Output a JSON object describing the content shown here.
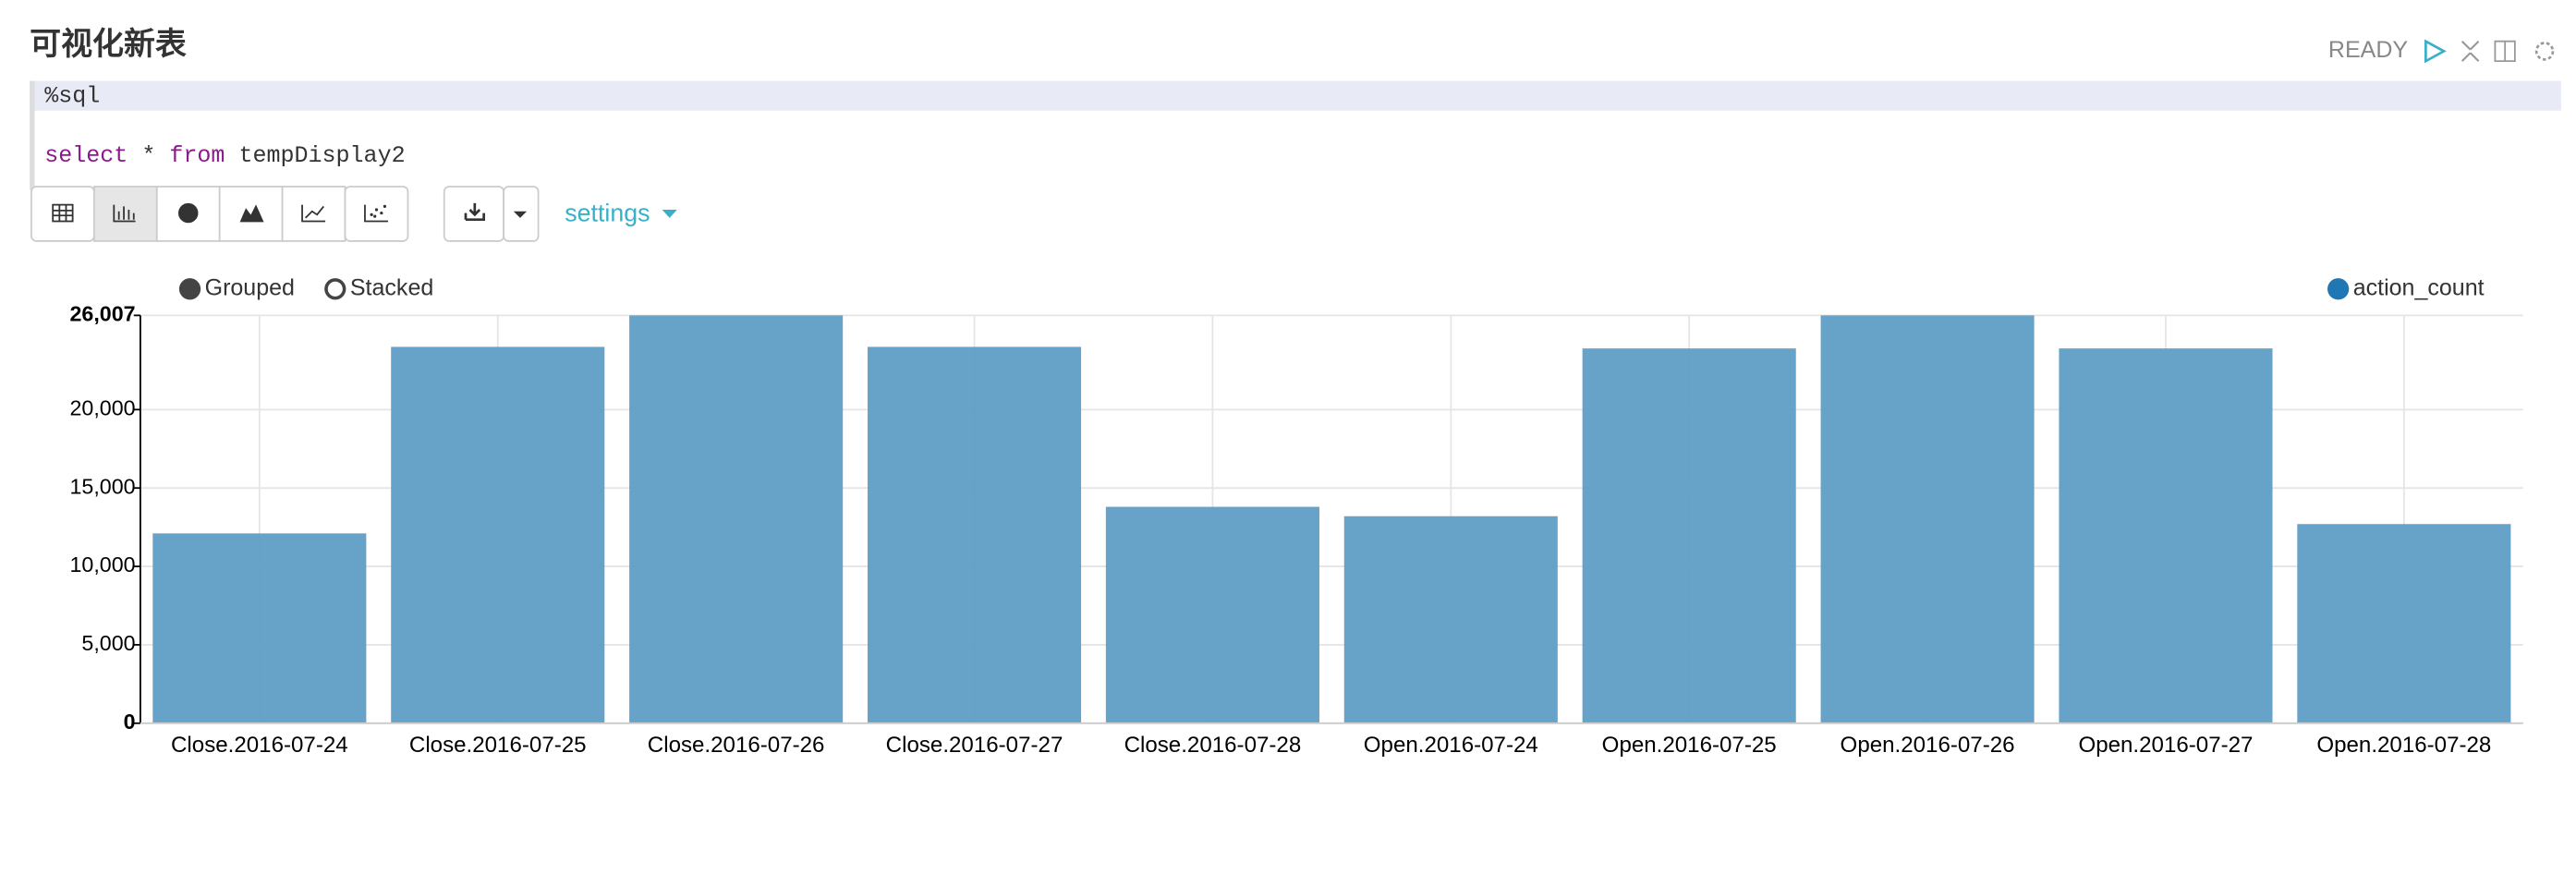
{
  "header": {
    "title": "可视化新表",
    "status": "READY"
  },
  "code": {
    "line1": "%sql",
    "line2": [
      "select",
      " * ",
      "from",
      " tempDisplay2"
    ]
  },
  "toolbar": {
    "settings": "settings"
  },
  "chart_data": {
    "type": "bar",
    "display_modes": [
      "Grouped",
      "Stacked"
    ],
    "categories": [
      "Close.2016-07-24",
      "Close.2016-07-25",
      "Close.2016-07-26",
      "Close.2016-07-27",
      "Close.2016-07-28",
      "Open.2016-07-24",
      "Open.2016-07-25",
      "Open.2016-07-26",
      "Open.2016-07-27",
      "Open.2016-07-28"
    ],
    "series": [
      {
        "name": "action_count",
        "color": "#5f9ec6",
        "values": [
          12105,
          24000,
          26007,
          24000,
          13800,
          13200,
          23900,
          26007,
          23900,
          12700
        ]
      }
    ],
    "ylim": [
      0,
      26007
    ],
    "yticks": [
      0,
      {
        "value": 5000,
        "label": "5,000"
      },
      {
        "value": 10000,
        "label": "10,000"
      },
      {
        "value": 15000,
        "label": "15,000"
      },
      {
        "value": 20000,
        "label": "20,000"
      },
      {
        "value": 26007,
        "label": "26,007"
      }
    ],
    "grid": true
  }
}
